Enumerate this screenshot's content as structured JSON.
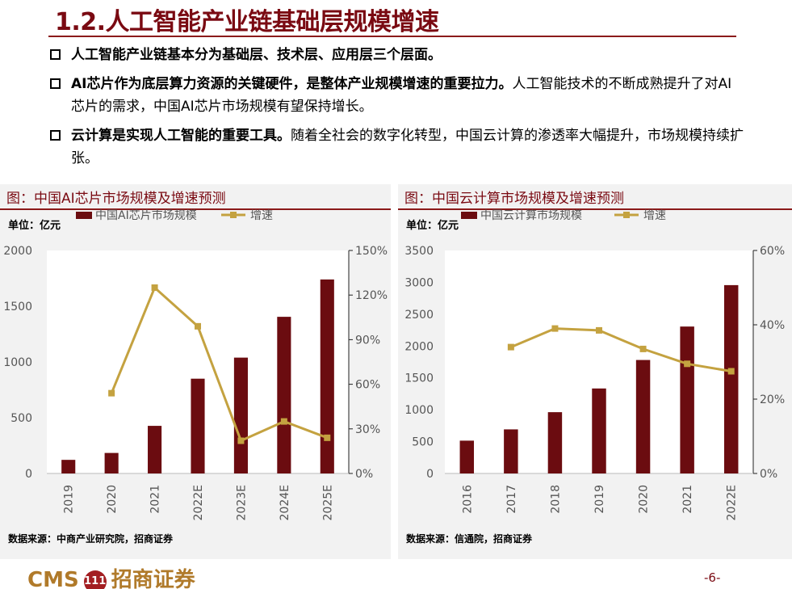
{
  "slide": {
    "title": "1.2.人工智能产业链基础层规模增速",
    "bullets": [
      {
        "bold": "人工智能产业链基本分为基础层、技术层、应用层三个层面。",
        "normal": ""
      },
      {
        "bold": "AI芯片作为底层算力资源的关键硬件，是整体产业规模增速的重要拉力。",
        "normal": "人工智能技术的不断成熟提升了对AI芯片的需求，中国AI芯片市场规模有望保持增长。"
      },
      {
        "bold": "云计算是实现人工智能的重要工具。",
        "normal": "随着全社会的数字化转型，中国云计算的渗透率大幅提升，市场规模持续扩张。"
      }
    ],
    "logo_text_1": "CMS",
    "logo_mark": "111",
    "logo_text_2": "招商证券",
    "page_number": "-6-"
  },
  "colors": {
    "bar": "#6b0c10",
    "line": "#c4a240",
    "title": "#7a0a12"
  },
  "chart_data": [
    {
      "type": "bar",
      "title": "图：中国AI芯片市场规模及增速预测",
      "unit": "单位：亿元",
      "source": "数据来源：中商产业研究院，招商证券",
      "categories": [
        "2019",
        "2020",
        "2021",
        "2022E",
        "2023E",
        "2024E",
        "2025E"
      ],
      "series": [
        {
          "name": "中国AI芯片市场规模",
          "type": "bar",
          "axis": "left",
          "values": [
            122,
            184,
            427,
            850,
            1039,
            1405,
            1740
          ]
        },
        {
          "name": "增速",
          "type": "line",
          "axis": "right",
          "values": [
            null,
            54,
            125,
            99,
            22,
            35,
            24
          ]
        }
      ],
      "y_left": {
        "min": 0,
        "max": 2000,
        "ticks": [
          "0",
          "500",
          "1000",
          "1500",
          "2000"
        ]
      },
      "y_right": {
        "min": 0,
        "max": 150,
        "ticks": [
          "0%",
          "30%",
          "60%",
          "90%",
          "120%",
          "150%"
        ]
      }
    },
    {
      "type": "bar",
      "title": "图：中国云计算市场规模及增速预测",
      "unit": "单位：亿元",
      "source": "数据来源：信通院，招商证券",
      "categories": [
        "2016",
        "2017",
        "2018",
        "2019",
        "2020",
        "2021",
        "2022E"
      ],
      "series": [
        {
          "name": "中国云计算市场规模",
          "type": "bar",
          "axis": "left",
          "values": [
            515,
            692,
            962,
            1334,
            1781,
            2306,
            2956
          ]
        },
        {
          "name": "增速",
          "type": "line",
          "axis": "right",
          "values": [
            null,
            34,
            39,
            38.5,
            33.5,
            29.5,
            27.5
          ]
        }
      ],
      "y_left": {
        "min": 0,
        "max": 3500,
        "ticks": [
          "0",
          "500",
          "1000",
          "1500",
          "2000",
          "2500",
          "3000",
          "3500"
        ]
      },
      "y_right": {
        "min": 0,
        "max": 60,
        "ticks": [
          "0%",
          "20%",
          "40%",
          "60%"
        ]
      }
    }
  ]
}
